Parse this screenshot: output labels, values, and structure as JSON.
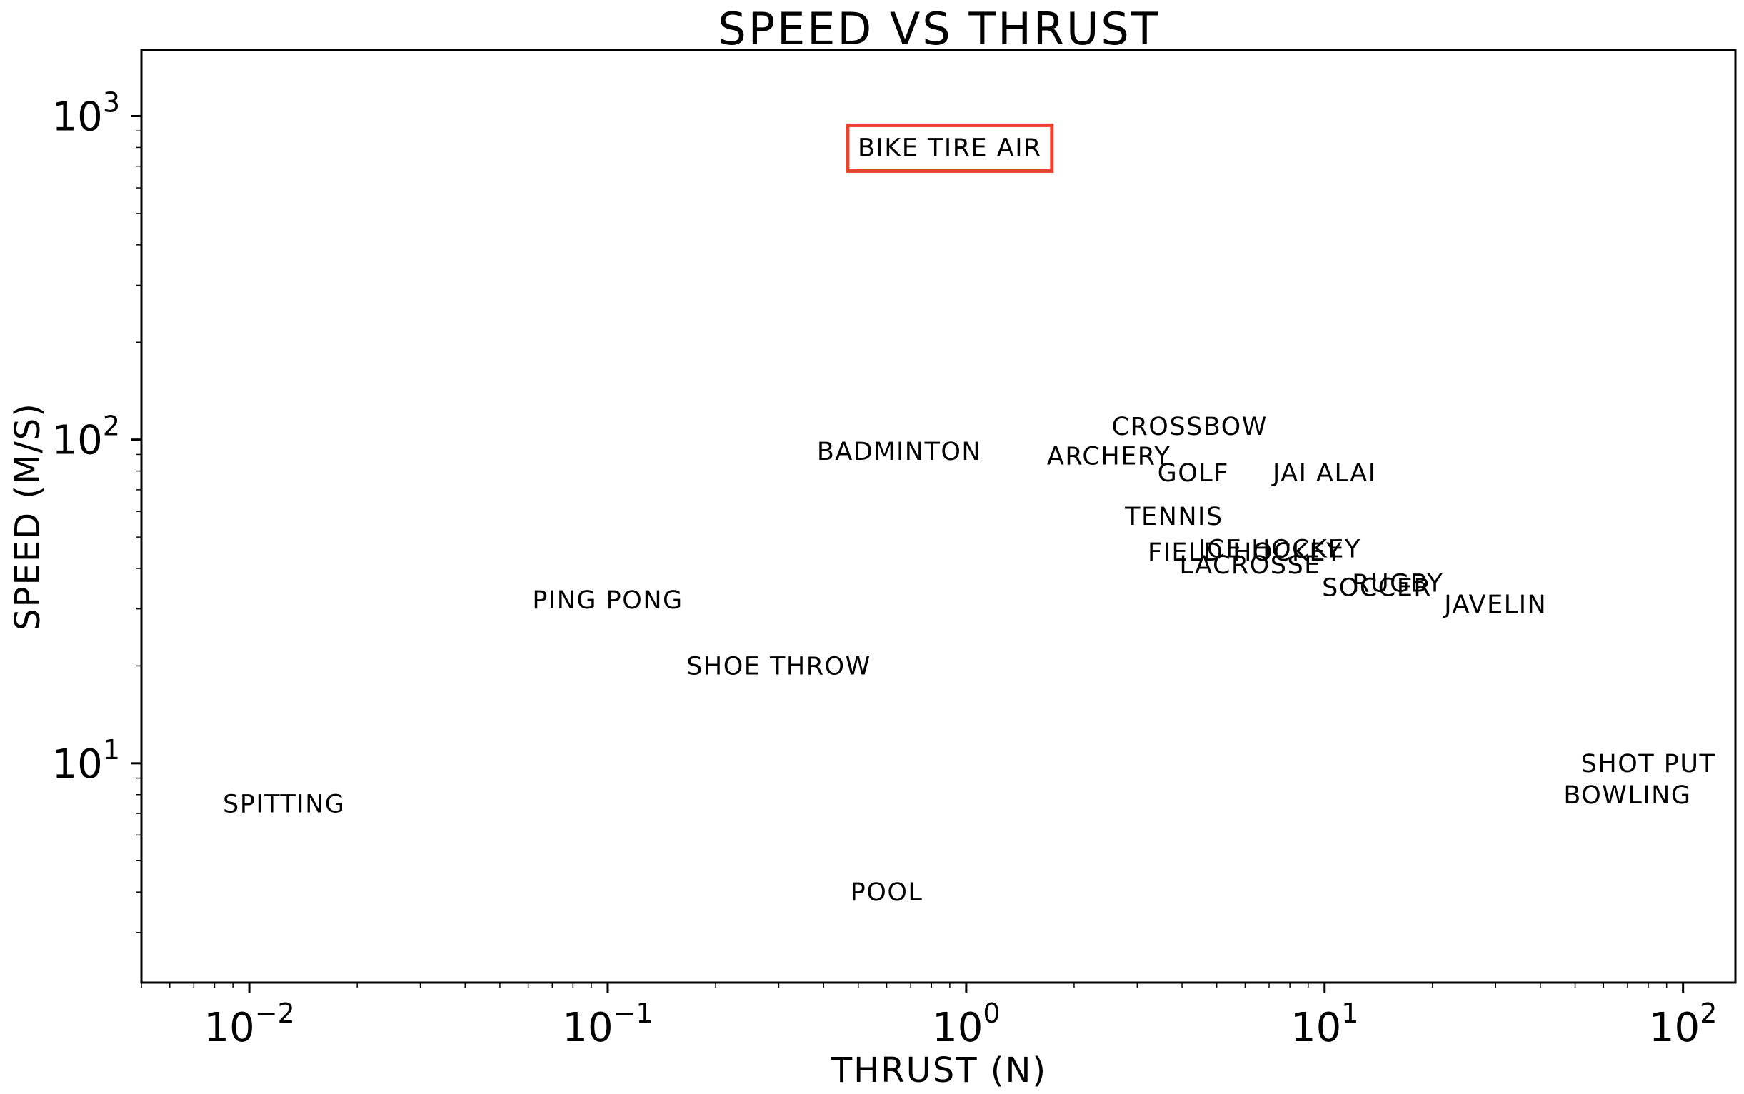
{
  "chart_data": {
    "type": "scatter",
    "title": "SPEED VS THRUST",
    "xlabel": "THRUST (N)",
    "ylabel": "SPEED (M/S)",
    "xscale": "log",
    "yscale": "log",
    "xlim": [
      0.005,
      140
    ],
    "ylim": [
      2.1,
      1600
    ],
    "grid": false,
    "legend": "none",
    "xticks": [
      {
        "value": 0.01,
        "base": "10",
        "exp": "−2"
      },
      {
        "value": 0.1,
        "base": "10",
        "exp": "−1"
      },
      {
        "value": 1,
        "base": "10",
        "exp": "0"
      },
      {
        "value": 10,
        "base": "10",
        "exp": "1"
      },
      {
        "value": 100,
        "base": "10",
        "exp": "2"
      }
    ],
    "yticks": [
      {
        "value": 10,
        "base": "10",
        "exp": "1"
      },
      {
        "value": 100,
        "base": "10",
        "exp": "2"
      },
      {
        "value": 1000,
        "base": "10",
        "exp": "3"
      }
    ],
    "points": [
      {
        "label": "BIKE TIRE AIR",
        "x": 0.9,
        "y": 800,
        "highlighted": true
      },
      {
        "label": "CROSSBOW",
        "x": 4.2,
        "y": 110
      },
      {
        "label": "BADMINTON",
        "x": 0.65,
        "y": 92
      },
      {
        "label": "ARCHERY",
        "x": 2.5,
        "y": 89
      },
      {
        "label": "GOLF",
        "x": 4.3,
        "y": 79
      },
      {
        "label": "JAI ALAI",
        "x": 10,
        "y": 79
      },
      {
        "label": "TENNIS",
        "x": 3.8,
        "y": 58
      },
      {
        "label": "ICE HOCKEY",
        "x": 7.5,
        "y": 46
      },
      {
        "label": "FIELD HOCKEY",
        "x": 6.0,
        "y": 45
      },
      {
        "label": "LACROSSE",
        "x": 6.2,
        "y": 41
      },
      {
        "label": "SOCCER",
        "x": 14,
        "y": 35
      },
      {
        "label": "RUGBY",
        "x": 16,
        "y": 36
      },
      {
        "label": "JAVELIN",
        "x": 30,
        "y": 31
      },
      {
        "label": "PING PONG",
        "x": 0.1,
        "y": 32
      },
      {
        "label": "SHOE THROW",
        "x": 0.3,
        "y": 20
      },
      {
        "label": "SHOT PUT",
        "x": 80,
        "y": 10
      },
      {
        "label": "BOWLING",
        "x": 70,
        "y": 8
      },
      {
        "label": "SPITTING",
        "x": 0.0125,
        "y": 7.5
      },
      {
        "label": "POOL",
        "x": 0.6,
        "y": 4
      }
    ],
    "highlight_color": "#e8432f",
    "text_color": "#000000"
  }
}
